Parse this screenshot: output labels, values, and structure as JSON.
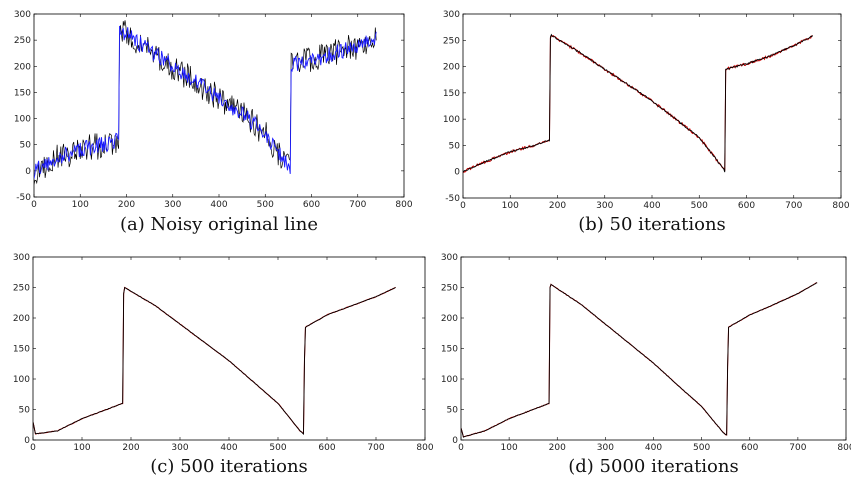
{
  "figure": {
    "charts": [
      {
        "caption": "(a)  Noisy original line",
        "type": "line",
        "xlim": [
          0,
          800
        ],
        "ylim": [
          -50,
          300
        ],
        "xticks": [
          0,
          100,
          200,
          300,
          400,
          500,
          600,
          700,
          800
        ],
        "yticks": [
          -50,
          0,
          50,
          100,
          150,
          200,
          250,
          300
        ],
        "grid": false,
        "noisy": true,
        "colors": {
          "overlay": "#1a1aff",
          "base": "#000000"
        }
      },
      {
        "caption": "(b)  50 iterations",
        "type": "line",
        "xlim": [
          0,
          800
        ],
        "ylim": [
          -50,
          300
        ],
        "xticks": [
          0,
          100,
          200,
          300,
          400,
          500,
          600,
          700,
          800
        ],
        "yticks": [
          -50,
          0,
          50,
          100,
          150,
          200,
          250,
          300
        ],
        "grid": false,
        "noisy": false,
        "colors": {
          "overlay": "#cc0000",
          "base": "#000000"
        }
      },
      {
        "caption": "(c)  500 iterations",
        "type": "line",
        "xlim": [
          0,
          800
        ],
        "ylim": [
          0,
          300
        ],
        "xticks": [
          0,
          100,
          200,
          300,
          400,
          500,
          600,
          700,
          800
        ],
        "yticks": [
          0,
          50,
          100,
          150,
          200,
          250,
          300
        ],
        "grid": false,
        "noisy": false,
        "colors": {
          "overlay": "#cc0000",
          "base": "#000000"
        }
      },
      {
        "caption": "(d)  5000 iterations",
        "type": "line",
        "xlim": [
          0,
          800
        ],
        "ylim": [
          0,
          300
        ],
        "xticks": [
          0,
          100,
          200,
          300,
          400,
          500,
          600,
          700,
          800
        ],
        "yticks": [
          0,
          50,
          100,
          150,
          200,
          250,
          300
        ],
        "grid": false,
        "noisy": false,
        "colors": {
          "overlay": "#cc0000",
          "base": "#000000"
        }
      }
    ]
  },
  "chart_data": [
    {
      "type": "line",
      "title": "(a)  Noisy original line",
      "xlim": [
        0,
        800
      ],
      "ylim": [
        -50,
        300
      ],
      "grid": false,
      "series": [
        {
          "x": [
            0,
            50,
            100,
            150,
            183,
            185,
            187,
            250,
            300,
            350,
            400,
            450,
            500,
            552,
            554,
            556,
            600,
            650,
            700,
            740
          ],
          "values": [
            0,
            25,
            40,
            50,
            60,
            265,
            270,
            230,
            200,
            170,
            140,
            110,
            70,
            5,
            0,
            205,
            210,
            225,
            240,
            255
          ]
        }
      ]
    },
    {
      "type": "line",
      "title": "(b)  50 iterations",
      "xlim": [
        0,
        800
      ],
      "ylim": [
        -50,
        300
      ],
      "grid": false,
      "series": [
        {
          "x": [
            0,
            50,
            100,
            150,
            183,
            185,
            187,
            250,
            300,
            350,
            400,
            450,
            500,
            552,
            554,
            556,
            600,
            650,
            700,
            740
          ],
          "values": [
            0,
            20,
            38,
            50,
            60,
            255,
            260,
            225,
            195,
            165,
            135,
            100,
            65,
            5,
            0,
            195,
            205,
            220,
            240,
            258
          ]
        }
      ]
    },
    {
      "type": "line",
      "title": "(c)  500 iterations",
      "xlim": [
        0,
        800
      ],
      "ylim": [
        0,
        300
      ],
      "grid": false,
      "series": [
        {
          "x": [
            0,
            5,
            50,
            100,
            150,
            183,
            185,
            187,
            250,
            300,
            350,
            400,
            450,
            500,
            545,
            552,
            554,
            556,
            600,
            650,
            700,
            740
          ],
          "values": [
            30,
            10,
            15,
            35,
            50,
            60,
            240,
            250,
            220,
            190,
            160,
            130,
            95,
            60,
            15,
            10,
            130,
            185,
            205,
            220,
            235,
            250
          ]
        }
      ]
    },
    {
      "type": "line",
      "title": "(d)  5000 iterations",
      "xlim": [
        0,
        800
      ],
      "ylim": [
        0,
        300
      ],
      "grid": false,
      "series": [
        {
          "x": [
            0,
            5,
            50,
            100,
            150,
            183,
            185,
            187,
            250,
            300,
            350,
            400,
            450,
            500,
            545,
            552,
            554,
            556,
            600,
            650,
            700,
            740
          ],
          "values": [
            20,
            5,
            15,
            35,
            50,
            60,
            250,
            255,
            222,
            190,
            158,
            126,
            90,
            55,
            12,
            8,
            120,
            185,
            205,
            222,
            240,
            258
          ]
        }
      ]
    }
  ]
}
